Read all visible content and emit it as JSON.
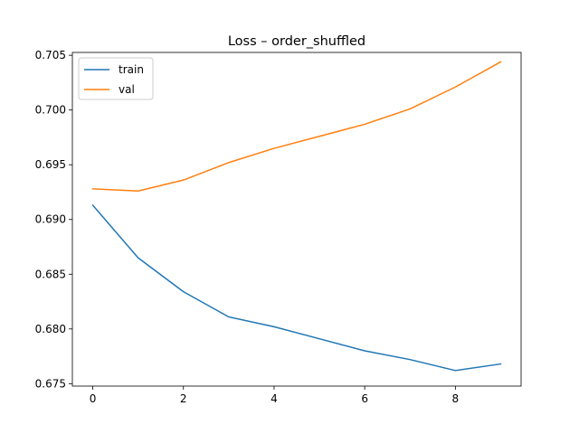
{
  "chart_data": {
    "type": "line",
    "title": "Loss – order_shuffled",
    "xlabel": "",
    "ylabel": "",
    "x": [
      0,
      1,
      2,
      3,
      4,
      5,
      6,
      7,
      8,
      9
    ],
    "xlim": [
      -0.45,
      9.45
    ],
    "ylim": [
      0.67478,
      0.70526
    ],
    "xticks": [
      0,
      2,
      4,
      6,
      8
    ],
    "yticks": [
      0.675,
      0.68,
      0.685,
      0.69,
      0.695,
      0.7,
      0.705
    ],
    "ytick_labels": [
      "0.675",
      "0.680",
      "0.685",
      "0.690",
      "0.695",
      "0.700",
      "0.705"
    ],
    "legend_position": "top-left",
    "grid": false,
    "series": [
      {
        "name": "train",
        "color": "#1f77b4",
        "values": [
          0.6913,
          0.6865,
          0.6834,
          0.6811,
          0.6802,
          0.6791,
          0.678,
          0.6772,
          0.6762,
          0.6768
        ]
      },
      {
        "name": "val",
        "color": "#ff7f0e",
        "values": [
          0.6928,
          0.6926,
          0.6936,
          0.6952,
          0.6965,
          0.6976,
          0.6987,
          0.7001,
          0.7021,
          0.7044
        ]
      }
    ]
  }
}
